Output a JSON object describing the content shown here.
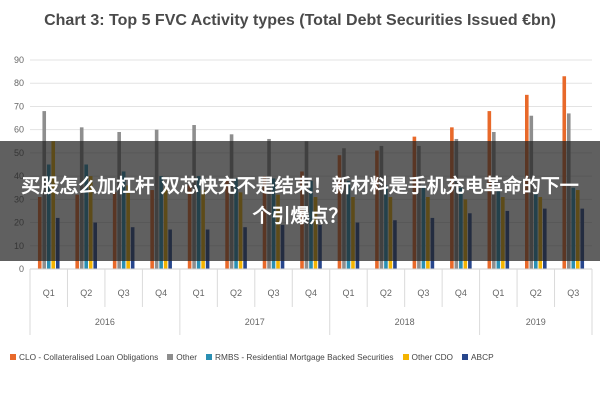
{
  "colors": {
    "clo": "#e8692a",
    "other": "#8e8e8e",
    "rmbs": "#2a8fb3",
    "other_cdo": "#f4b400",
    "abcp": "#27468c",
    "grid": "#e3e3e3",
    "axis_text": "#666666"
  },
  "overlay": {
    "text": "买股怎么加杠杆 双芯快充不是结束！新材料是手机充电革命的下一个引爆点？"
  },
  "chart_data": {
    "type": "bar",
    "title": "Chart 3: Top 5 FVC Activity types (Total Debt Securities Issued €bn)",
    "xlabel": "",
    "ylabel": "",
    "ylim": [
      0,
      90
    ],
    "yticks": [
      0,
      10,
      20,
      30,
      40,
      50,
      60,
      70,
      80,
      90
    ],
    "grid": true,
    "legend_position": "bottom",
    "categories": [
      "Q1",
      "Q2",
      "Q3",
      "Q4",
      "Q1",
      "Q2",
      "Q3",
      "Q4",
      "Q1",
      "Q2",
      "Q3",
      "Q4",
      "Q1",
      "Q2",
      "Q3"
    ],
    "groups": [
      {
        "label": "2016",
        "count": 4
      },
      {
        "label": "2017",
        "count": 4
      },
      {
        "label": "2018",
        "count": 4
      },
      {
        "label": "2019",
        "count": 3
      }
    ],
    "series": [
      {
        "name": "CLO - Collateralised Loan Obligations",
        "color_key": "clo",
        "values": [
          31,
          32,
          33,
          34,
          36,
          38,
          40,
          42,
          49,
          51,
          57,
          61,
          68,
          75,
          83
        ]
      },
      {
        "name": "Other",
        "color_key": "other",
        "values": [
          68,
          61,
          59,
          60,
          62,
          58,
          56,
          55,
          52,
          53,
          53,
          56,
          59,
          66,
          67
        ]
      },
      {
        "name": "RMBS - Residential Mortgage Backed Securities",
        "color_key": "rmbs",
        "values": [
          45,
          45,
          42,
          40,
          40,
          39,
          39,
          38,
          38,
          36,
          36,
          35,
          34,
          33,
          35
        ]
      },
      {
        "name": "Other CDO",
        "color_key": "other_cdo",
        "values": [
          55,
          40,
          36,
          35,
          34,
          33,
          32,
          31,
          31,
          31,
          31,
          30,
          31,
          31,
          34
        ]
      },
      {
        "name": "ABCP",
        "color_key": "abcp",
        "values": [
          22,
          20,
          18,
          17,
          17,
          18,
          19,
          19,
          20,
          21,
          22,
          24,
          25,
          26,
          26
        ]
      }
    ]
  }
}
